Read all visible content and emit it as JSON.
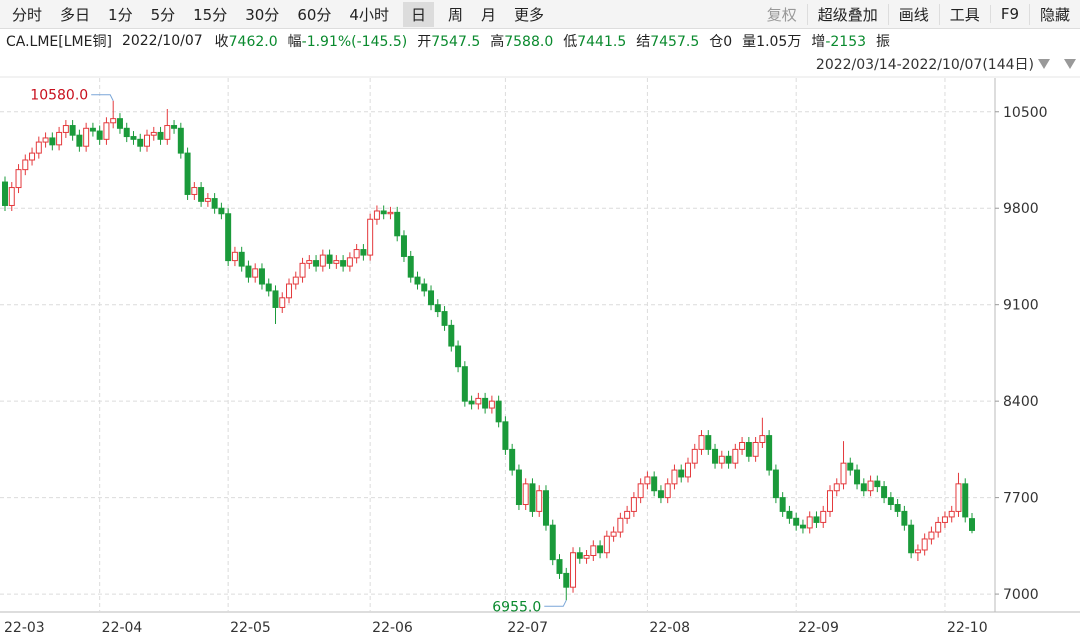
{
  "toolbar": {
    "tabs": [
      "分时",
      "多日",
      "1分",
      "5分",
      "15分",
      "30分",
      "60分",
      "4小时",
      "日",
      "周",
      "月",
      "更多"
    ],
    "selected": "日",
    "tools": [
      "复权",
      "超级叠加",
      "画线",
      "工具",
      "F9",
      "隐藏"
    ]
  },
  "quote": {
    "symbol": "CA.LME[LME铜]",
    "date": "2022/10/07",
    "items": [
      {
        "label": "收",
        "value": "7462.0",
        "color": "#0a8a2e"
      },
      {
        "label": "幅",
        "value": "-1.91%(-145.5)",
        "color": "#0a8a2e"
      },
      {
        "label": "开",
        "value": "7547.5",
        "color": "#0a8a2e"
      },
      {
        "label": "高",
        "value": "7588.0",
        "color": "#0a8a2e"
      },
      {
        "label": "低",
        "value": "7441.5",
        "color": "#0a8a2e"
      },
      {
        "label": "结",
        "value": "7457.5",
        "color": "#0a8a2e"
      },
      {
        "label": "仓",
        "value": "0",
        "color": "#222"
      },
      {
        "label": "量",
        "value": "1.05万",
        "color": "#222"
      },
      {
        "label": "增",
        "value": "-2153",
        "color": "#0a8a2e"
      },
      {
        "label": "振"
      }
    ],
    "range": "2022/03/14-2022/10/07(144日)"
  },
  "chart_data": {
    "type": "candlestick",
    "up_color": "#e4393c",
    "down_color": "#1a9a3a",
    "grid": true,
    "ylim": [
      6870,
      10745
    ],
    "yticks": [
      7000,
      7700,
      8400,
      9100,
      9800,
      10500
    ],
    "xticks": [
      {
        "value": 0,
        "label": "22-03"
      },
      {
        "value": 14,
        "label": "22-04"
      },
      {
        "value": 33,
        "label": "22-05"
      },
      {
        "value": 54,
        "label": "22-06"
      },
      {
        "value": 74,
        "label": "22-07"
      },
      {
        "value": 95,
        "label": "22-08"
      },
      {
        "value": 117,
        "label": "22-09"
      },
      {
        "value": 139,
        "label": "22-10"
      }
    ],
    "annotations": [
      {
        "text": "10580.0",
        "at": "high",
        "index": 16
      },
      {
        "text": "6955.0",
        "at": "low",
        "index": 83
      }
    ],
    "open": [
      9990,
      9820,
      9950,
      10080,
      10150,
      10200,
      10280,
      10310,
      10260,
      10350,
      10400,
      10330,
      10250,
      10380,
      10360,
      10300,
      10420,
      10450,
      10380,
      10320,
      10300,
      10250,
      10330,
      10350,
      10300,
      10400,
      10380,
      10200,
      9900,
      9950,
      9850,
      9870,
      9800,
      9760,
      9420,
      9480,
      9380,
      9300,
      9360,
      9250,
      9200,
      9080,
      9150,
      9250,
      9300,
      9400,
      9420,
      9380,
      9460,
      9400,
      9420,
      9380,
      9440,
      9500,
      9460,
      9720,
      9780,
      9760,
      9770,
      9600,
      9450,
      9300,
      9250,
      9200,
      9100,
      9050,
      8950,
      8800,
      8650,
      8400,
      8380,
      8420,
      8350,
      8400,
      8250,
      8050,
      7900,
      7650,
      7800,
      7600,
      7750,
      7500,
      7250,
      7150,
      7050,
      7300,
      7260,
      7280,
      7350,
      7300,
      7420,
      7450,
      7550,
      7600,
      7700,
      7800,
      7850,
      7750,
      7700,
      7800,
      7900,
      7850,
      7950,
      8050,
      8150,
      8050,
      7950,
      8000,
      7950,
      8050,
      8100,
      8000,
      8100,
      8150,
      7900,
      7700,
      7600,
      7550,
      7500,
      7480,
      7560,
      7520,
      7600,
      7750,
      7800,
      7950,
      7900,
      7800,
      7750,
      7820,
      7780,
      7700,
      7650,
      7600,
      7500,
      7300,
      7320,
      7400,
      7450,
      7520,
      7560,
      7600,
      7800,
      7547.5
    ],
    "high": [
      10030,
      9990,
      10120,
      10190,
      10240,
      10320,
      10350,
      10350,
      10390,
      10440,
      10440,
      10370,
      10420,
      10420,
      10400,
      10460,
      10580,
      10490,
      10420,
      10360,
      10340,
      10370,
      10390,
      10390,
      10520,
      10440,
      10420,
      10240,
      9990,
      9990,
      9910,
      9910,
      9840,
      9800,
      9520,
      9520,
      9420,
      9400,
      9400,
      9290,
      9240,
      9190,
      9290,
      9340,
      9440,
      9460,
      9460,
      9500,
      9500,
      9460,
      9460,
      9480,
      9540,
      9540,
      9760,
      9820,
      9820,
      9810,
      9810,
      9640,
      9490,
      9340,
      9290,
      9240,
      9140,
      9090,
      8990,
      8840,
      8690,
      8440,
      8460,
      8460,
      8440,
      8440,
      8290,
      8090,
      7940,
      7840,
      7840,
      7790,
      7790,
      7540,
      7290,
      7190,
      7340,
      7340,
      7320,
      7390,
      7390,
      7460,
      7490,
      7590,
      7640,
      7740,
      7840,
      7890,
      7890,
      7790,
      7840,
      7940,
      7940,
      7990,
      8090,
      8190,
      8190,
      8090,
      8040,
      8040,
      8090,
      8140,
      8140,
      8140,
      8280,
      8190,
      7940,
      7740,
      7640,
      7590,
      7540,
      7600,
      7600,
      7640,
      7790,
      7840,
      8110,
      7990,
      7940,
      7840,
      7860,
      7860,
      7820,
      7740,
      7690,
      7640,
      7540,
      7360,
      7440,
      7490,
      7560,
      7600,
      7640,
      7880,
      7840,
      7588
    ],
    "low": [
      9780,
      9780,
      9910,
      10040,
      10110,
      10160,
      10240,
      10220,
      10220,
      10310,
      10290,
      10210,
      10210,
      10320,
      10260,
      10260,
      10380,
      10340,
      10280,
      10260,
      10210,
      10210,
      10290,
      10260,
      10260,
      10340,
      10160,
      9860,
      9860,
      9810,
      9810,
      9760,
      9720,
      9380,
      9380,
      9340,
      9260,
      9260,
      9210,
      9160,
      8960,
      9040,
      9110,
      9210,
      9260,
      9360,
      9340,
      9340,
      9360,
      9360,
      9340,
      9340,
      9400,
      9420,
      9420,
      9680,
      9720,
      9720,
      9560,
      9410,
      9260,
      9210,
      9160,
      9060,
      9010,
      8910,
      8760,
      8610,
      8360,
      8340,
      8340,
      8310,
      8310,
      8210,
      8010,
      7860,
      7610,
      7610,
      7560,
      7560,
      7460,
      7210,
      7110,
      6955,
      7010,
      7220,
      7220,
      7240,
      7260,
      7260,
      7380,
      7410,
      7510,
      7560,
      7660,
      7760,
      7710,
      7660,
      7660,
      7760,
      7810,
      7810,
      7910,
      8010,
      8010,
      7910,
      7910,
      7910,
      7910,
      8010,
      7960,
      7960,
      8060,
      7860,
      7660,
      7560,
      7510,
      7460,
      7440,
      7440,
      7480,
      7480,
      7560,
      7710,
      7760,
      7860,
      7760,
      7710,
      7710,
      7740,
      7660,
      7610,
      7560,
      7460,
      7260,
      7240,
      7280,
      7360,
      7410,
      7480,
      7520,
      7560,
      7520,
      7441.5
    ],
    "close": [
      9820,
      9950,
      10080,
      10150,
      10200,
      10280,
      10310,
      10260,
      10350,
      10400,
      10330,
      10250,
      10380,
      10360,
      10300,
      10420,
      10450,
      10380,
      10320,
      10300,
      10250,
      10330,
      10350,
      10300,
      10400,
      10380,
      10200,
      9900,
      9950,
      9850,
      9870,
      9800,
      9760,
      9420,
      9480,
      9380,
      9300,
      9360,
      9250,
      9200,
      9080,
      9150,
      9250,
      9300,
      9400,
      9420,
      9380,
      9460,
      9400,
      9420,
      9380,
      9440,
      9500,
      9460,
      9720,
      9780,
      9760,
      9770,
      9600,
      9450,
      9300,
      9250,
      9200,
      9100,
      9050,
      8950,
      8800,
      8650,
      8400,
      8380,
      8420,
      8350,
      8400,
      8250,
      8050,
      7900,
      7650,
      7800,
      7600,
      7750,
      7500,
      7250,
      7150,
      7050,
      7300,
      7260,
      7280,
      7350,
      7300,
      7420,
      7450,
      7550,
      7600,
      7700,
      7800,
      7850,
      7750,
      7700,
      7800,
      7900,
      7850,
      7950,
      8050,
      8150,
      8050,
      7950,
      8000,
      7950,
      8050,
      8100,
      8000,
      8100,
      8150,
      7900,
      7700,
      7600,
      7550,
      7500,
      7480,
      7560,
      7520,
      7600,
      7750,
      7800,
      7950,
      7900,
      7800,
      7750,
      7820,
      7780,
      7700,
      7650,
      7600,
      7500,
      7300,
      7320,
      7400,
      7450,
      7520,
      7560,
      7600,
      7800,
      7560,
      7462
    ]
  }
}
